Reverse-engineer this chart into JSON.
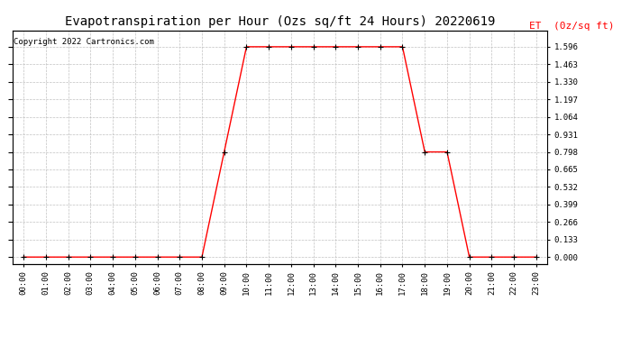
{
  "title": "Evapotranspiration per Hour (Ozs sq/ft 24 Hours) 20220619",
  "copyright": "Copyright 2022 Cartronics.com",
  "ylabel": "ET  (0z/sq ft)",
  "line_color": "red",
  "marker": "+",
  "marker_color": "black",
  "background_color": "white",
  "grid_color": "#bbbbbb",
  "hours": [
    0,
    1,
    2,
    3,
    4,
    5,
    6,
    7,
    8,
    9,
    10,
    11,
    12,
    13,
    14,
    15,
    16,
    17,
    18,
    19,
    20,
    21,
    22,
    23
  ],
  "values": [
    0.0,
    0.0,
    0.0,
    0.0,
    0.0,
    0.0,
    0.0,
    0.0,
    0.0,
    0.798,
    1.596,
    1.596,
    1.596,
    1.596,
    1.596,
    1.596,
    1.596,
    1.596,
    0.798,
    0.798,
    0.0,
    0.0,
    0.0,
    0.0
  ],
  "yticks": [
    0.0,
    0.133,
    0.266,
    0.399,
    0.532,
    0.665,
    0.798,
    0.931,
    1.064,
    1.197,
    1.33,
    1.463,
    1.596
  ],
  "ylim": [
    -0.05,
    1.72
  ],
  "title_fontsize": 10,
  "ylabel_color": "red",
  "ylabel_fontsize": 8,
  "copyright_color": "black",
  "copyright_fontsize": 6.5,
  "tick_fontsize": 6.5,
  "xlim": [
    -0.5,
    23.5
  ]
}
